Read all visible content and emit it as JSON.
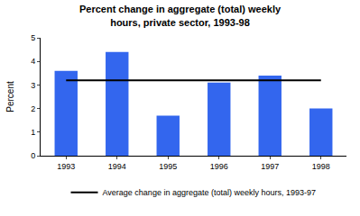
{
  "chart_data": {
    "type": "bar",
    "title": "Percent change in aggregate (total) weekly\nhours, private sector, 1993-98",
    "y_label": "Percent",
    "categories": [
      "1993",
      "1994",
      "1995",
      "1996",
      "1997",
      "1998"
    ],
    "values": [
      3.6,
      4.4,
      1.7,
      3.1,
      3.4,
      2.0
    ],
    "color": "#3366ee",
    "ylim": [
      0,
      5
    ],
    "yticks": [
      0,
      1,
      2,
      3,
      4,
      5
    ],
    "grid": false,
    "legend": "bottom",
    "series": [
      {
        "name": "Average change in aggregate (total) weekly hours, 1993-97",
        "type": "line",
        "color": "#000000",
        "values": [
          3.2,
          3.2,
          3.2,
          3.2,
          3.2,
          3.2
        ]
      }
    ]
  }
}
